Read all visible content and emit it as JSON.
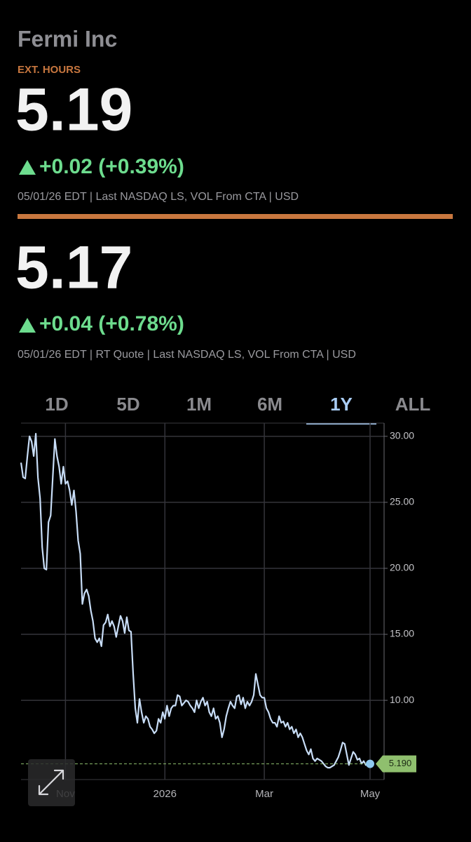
{
  "header": {
    "title": "Fermi Inc",
    "session": "EXT. HOURS"
  },
  "quotes": [
    {
      "price": "5.19",
      "change": "+0.02 (+0.39%)",
      "meta": "05/01/26 EDT | Last NASDAQ LS, VOL From CTA | USD"
    },
    {
      "price": "5.17",
      "change": "+0.04 (+0.78%)",
      "meta": "05/01/26 EDT | RT Quote | Last NASDAQ LS, VOL From CTA | USD"
    }
  ],
  "tabs": [
    "1D",
    "5D",
    "1M",
    "6M",
    "1Y",
    "ALL"
  ],
  "selected_tab": "1Y",
  "chart_data": {
    "type": "line",
    "color": "#c8ddf7",
    "values": [
      28.0,
      26.9,
      26.8,
      28.5,
      30.0,
      29.6,
      28.5,
      30.2,
      26.9,
      25.3,
      21.6,
      20.0,
      19.9,
      23.5,
      24.0,
      26.9,
      29.8,
      28.5,
      27.7,
      26.4,
      27.7,
      26.4,
      26.6,
      25.9,
      24.8,
      25.9,
      24.3,
      22.1,
      21.1,
      17.3,
      18.1,
      18.4,
      17.9,
      16.8,
      16.0,
      14.7,
      14.4,
      14.7,
      14.1,
      15.7,
      15.9,
      16.5,
      15.6,
      16.0,
      15.6,
      14.8,
      15.6,
      16.4,
      16.0,
      15.1,
      16.3,
      15.3,
      15.2,
      12.0,
      9.4,
      8.3,
      10.1,
      9.1,
      8.3,
      8.8,
      8.6,
      8.0,
      7.8,
      7.5,
      7.7,
      8.6,
      8.3,
      9.1,
      8.6,
      9.6,
      8.8,
      9.4,
      9.6,
      9.6,
      10.4,
      10.3,
      9.6,
      9.8,
      10.0,
      9.9,
      9.6,
      9.4,
      9.1,
      10.0,
      9.4,
      9.9,
      10.2,
      9.6,
      9.9,
      9.1,
      8.8,
      9.4,
      8.6,
      8.8,
      8.3,
      7.2,
      7.8,
      8.8,
      9.4,
      9.9,
      9.6,
      9.4,
      10.3,
      10.4,
      9.7,
      10.2,
      9.4,
      9.9,
      9.6,
      9.9,
      10.4,
      12.0,
      11.2,
      10.4,
      10.2,
      10.2,
      9.4,
      9.1,
      8.6,
      8.3,
      8.3,
      8.0,
      8.8,
      8.3,
      8.4,
      8.0,
      8.3,
      7.8,
      8.0,
      7.5,
      7.8,
      7.2,
      7.5,
      7.2,
      6.7,
      6.2,
      5.9,
      6.3,
      5.6,
      5.4,
      5.6,
      5.5,
      5.4,
      5.2,
      5.0,
      4.9,
      4.9,
      5.0,
      5.1,
      5.4,
      5.7,
      6.2,
      6.8,
      6.7,
      5.9,
      5.1,
      5.6,
      6.1,
      5.9,
      5.5,
      5.6,
      5.2,
      5.4,
      5.1,
      5.2,
      5.19
    ],
    "xlim": [
      0,
      165
    ],
    "xticks": [
      {
        "value": 21,
        "label": "Nov"
      },
      {
        "value": 68,
        "label": "2026"
      },
      {
        "value": 115,
        "label": "Mar"
      },
      {
        "value": 165,
        "label": "May"
      }
    ],
    "ylim": [
      4,
      31
    ],
    "yticks": [
      {
        "value": 30,
        "label": "30.00"
      },
      {
        "value": 25,
        "label": "25.00"
      },
      {
        "value": 20,
        "label": "20.00"
      },
      {
        "value": 15,
        "label": "15.00"
      },
      {
        "value": 10,
        "label": "10.00"
      }
    ],
    "grid": true,
    "last_value": {
      "value": 5.19,
      "label": "5.190"
    }
  }
}
